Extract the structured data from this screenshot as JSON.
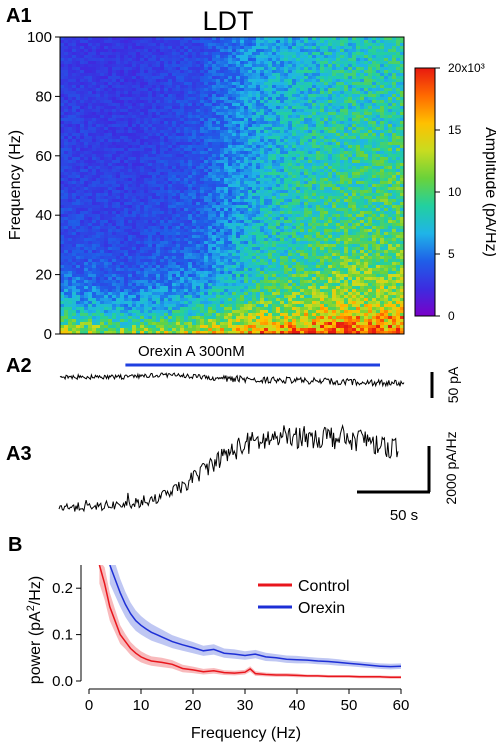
{
  "panels": {
    "a1": "A1",
    "a2": "A2",
    "a3": "A3",
    "b": "B"
  },
  "chart_data": [
    {
      "panel": "A1",
      "type": "heatmap",
      "title": "LDT",
      "xlabel": "",
      "ylabel": "Frequency (Hz)",
      "ylim": [
        0,
        100
      ],
      "yticks": [
        0,
        20,
        40,
        60,
        80,
        100
      ],
      "colorbar": {
        "label": "Amplitude (pA/Hz)",
        "range": [
          0,
          20000
        ],
        "ticks": [
          "0",
          "5",
          "10",
          "15",
          "20x10³"
        ],
        "colormap": [
          "#7a00c8",
          "#3c2ce0",
          "#1f5fe8",
          "#1fb4e8",
          "#22d0a0",
          "#6ad23a",
          "#c8dc20",
          "#ffc000",
          "#ff6a00",
          "#e81a10"
        ]
      },
      "amplitude_profile": {
        "time_fraction": [
          0.0,
          0.2,
          0.4,
          0.6,
          0.8,
          1.0
        ],
        "mean_amplitude": [
          3800,
          3400,
          4600,
          8200,
          10200,
          10800
        ],
        "low_frequency_amplitude": [
          14000,
          12000,
          14000,
          17000,
          19000,
          19000
        ]
      }
    },
    {
      "panel": "A2",
      "type": "line",
      "drug_label": "Orexin A 300nM",
      "drug_bar_color": "#1f3fe0",
      "scale_label": "50 pA",
      "drug_start_fraction": 0.19,
      "drug_end_fraction": 0.93
    },
    {
      "panel": "A3",
      "type": "line",
      "scale_y_label": "2000 pA/Hz",
      "scale_x_label": "50 s",
      "trace_profile_fraction": [
        0.05,
        0.06,
        0.08,
        0.12,
        0.28,
        0.55,
        0.75,
        0.82,
        0.85,
        0.83,
        0.8,
        0.7
      ]
    },
    {
      "panel": "B",
      "type": "line",
      "xlabel": "Frequency (Hz)",
      "ylabel": "power (pA²/Hz)",
      "ylabel_parts": [
        "power (pA",
        "2",
        "/Hz)"
      ],
      "xlim": [
        0,
        60
      ],
      "ylim": [
        0,
        0.25
      ],
      "xticks": [
        0,
        10,
        20,
        30,
        40,
        50,
        60
      ],
      "yticks": [
        0.0,
        0.1,
        0.2
      ],
      "ytick_labels": [
        "0.0",
        "0.1",
        "0.2"
      ],
      "legend": "top-right",
      "series": [
        {
          "name": "Control",
          "color": "#e8161c",
          "band_color": "#f5a3a6",
          "x": [
            2,
            3,
            4,
            5,
            6,
            7,
            8,
            9,
            10,
            11,
            12,
            14,
            16,
            18,
            20,
            22,
            24,
            26,
            28,
            30,
            31,
            32,
            34,
            36,
            38,
            40,
            42,
            44,
            46,
            48,
            50,
            52,
            54,
            56,
            58,
            60
          ],
          "y": [
            0.25,
            0.21,
            0.16,
            0.13,
            0.1,
            0.085,
            0.07,
            0.06,
            0.052,
            0.047,
            0.043,
            0.04,
            0.036,
            0.027,
            0.024,
            0.02,
            0.022,
            0.018,
            0.017,
            0.019,
            0.026,
            0.016,
            0.014,
            0.013,
            0.013,
            0.012,
            0.011,
            0.011,
            0.01,
            0.01,
            0.01,
            0.009,
            0.009,
            0.009,
            0.008,
            0.008
          ],
          "err": [
            0.04,
            0.035,
            0.03,
            0.025,
            0.02,
            0.016,
            0.014,
            0.013,
            0.012,
            0.011,
            0.01,
            0.01,
            0.009,
            0.008,
            0.007,
            0.006,
            0.006,
            0.005,
            0.005,
            0.005,
            0.006,
            0.005,
            0.004,
            0.004,
            0.004,
            0.004,
            0.003,
            0.003,
            0.003,
            0.003,
            0.003,
            0.003,
            0.003,
            0.003,
            0.003,
            0.003
          ]
        },
        {
          "name": "Orexin",
          "color": "#1d2fd6",
          "band_color": "#a9b4ef",
          "x": [
            4,
            5,
            6,
            7,
            8,
            9,
            10,
            11,
            12,
            13,
            14,
            16,
            18,
            20,
            22,
            24,
            26,
            28,
            30,
            32,
            34,
            36,
            38,
            40,
            42,
            44,
            46,
            48,
            50,
            52,
            54,
            56,
            58,
            60
          ],
          "y": [
            0.25,
            0.22,
            0.19,
            0.165,
            0.145,
            0.13,
            0.12,
            0.112,
            0.105,
            0.1,
            0.095,
            0.085,
            0.078,
            0.072,
            0.065,
            0.068,
            0.06,
            0.058,
            0.055,
            0.058,
            0.052,
            0.05,
            0.047,
            0.046,
            0.045,
            0.043,
            0.042,
            0.04,
            0.038,
            0.036,
            0.034,
            0.032,
            0.031,
            0.032
          ],
          "err": [
            0.04,
            0.035,
            0.03,
            0.027,
            0.024,
            0.022,
            0.02,
            0.019,
            0.018,
            0.017,
            0.016,
            0.014,
            0.013,
            0.012,
            0.011,
            0.011,
            0.01,
            0.01,
            0.009,
            0.009,
            0.009,
            0.008,
            0.008,
            0.008,
            0.007,
            0.007,
            0.007,
            0.007,
            0.006,
            0.006,
            0.006,
            0.006,
            0.006,
            0.006
          ]
        }
      ]
    }
  ]
}
